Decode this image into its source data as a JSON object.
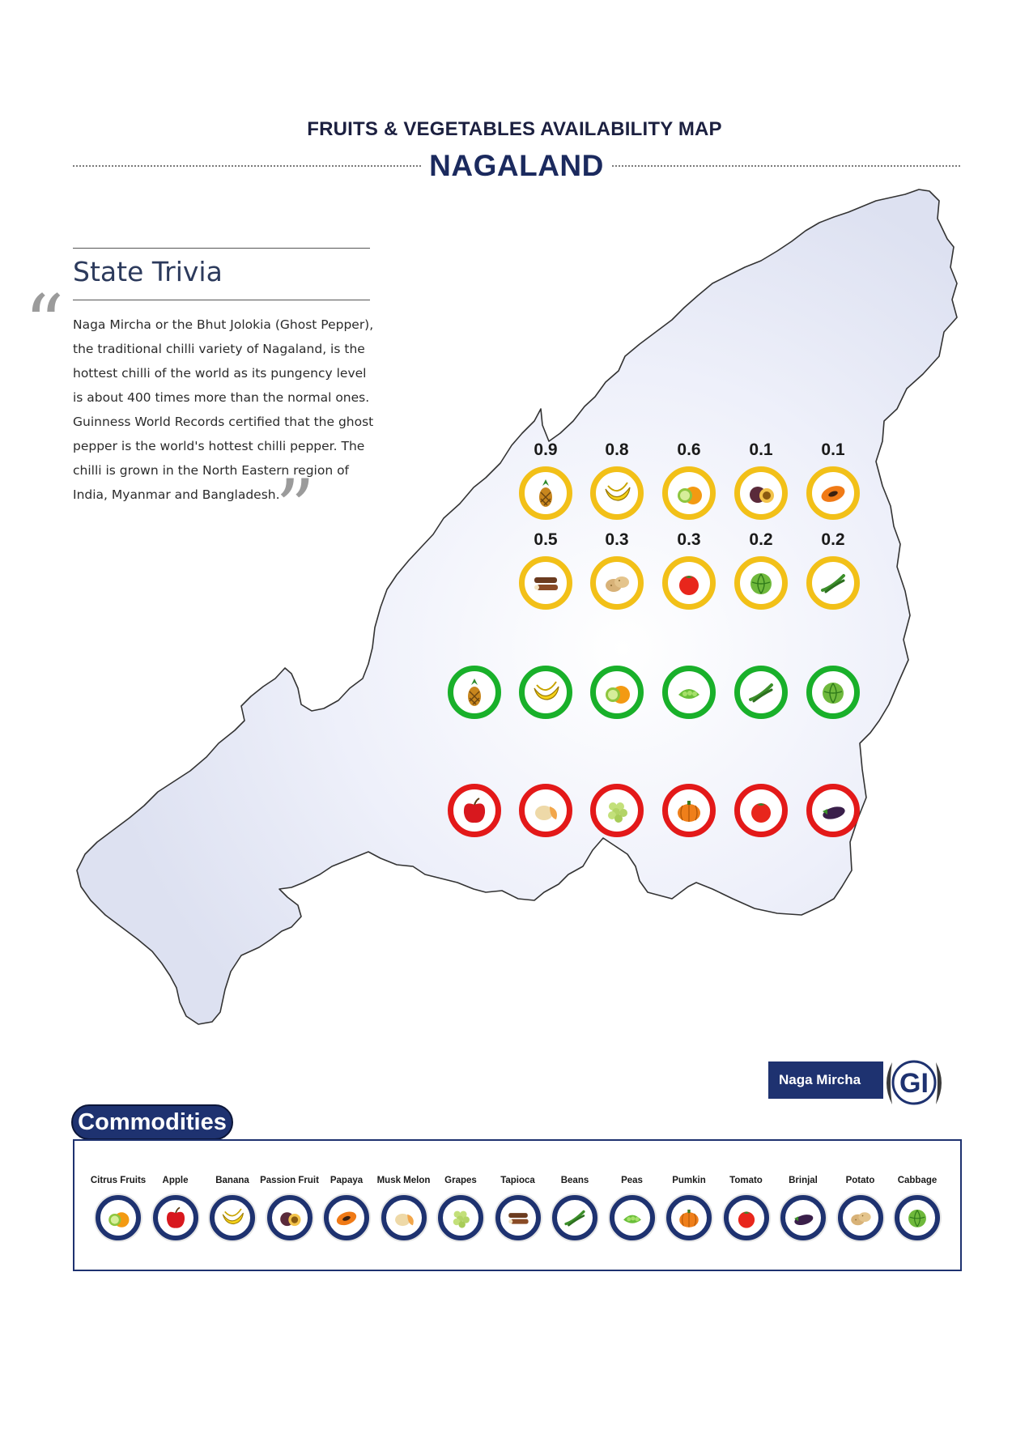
{
  "header": {
    "title": "FRUITS & VEGETABLES AVAILABILITY MAP",
    "state": "NAGALAND"
  },
  "trivia": {
    "heading": "State Trivia",
    "open_quote": "“",
    "close_quote": "”",
    "lines": [
      "Naga Mircha or the Bhut Jolokia (Ghost Pepper),",
      "the traditional chilli variety of Nagaland, is the",
      "hottest chilli of the world as its pungency level",
      "is about 400 times more than the normal ones.",
      "Guinness World Records certified that the ghost",
      "pepper is the world's hottest chilli pepper. The",
      "chilli is grown in the North Eastern region of",
      "India, Myanmar and Bangladesh."
    ]
  },
  "map": {
    "colors": {
      "yellow": "#f2c018",
      "green": "#19b02a",
      "red": "#e31919",
      "map_fill": "#e6e9f6",
      "map_stroke": "#333333"
    },
    "yellow_row1": [
      {
        "value": "0.9",
        "icon": "pineapple-icon"
      },
      {
        "value": "0.8",
        "icon": "banana-icon"
      },
      {
        "value": "0.6",
        "icon": "citrus-fruits-icon"
      },
      {
        "value": "0.1",
        "icon": "passion-fruit-icon"
      },
      {
        "value": "0.1",
        "icon": "papaya-icon"
      }
    ],
    "yellow_row2": [
      {
        "value": "0.5",
        "icon": "tapioca-icon"
      },
      {
        "value": "0.3",
        "icon": "potato-icon"
      },
      {
        "value": "0.3",
        "icon": "tomato-icon"
      },
      {
        "value": "0.2",
        "icon": "cabbage-icon"
      },
      {
        "value": "0.2",
        "icon": "beans-icon"
      }
    ],
    "green_row": [
      {
        "icon": "pineapple-icon"
      },
      {
        "icon": "banana-icon"
      },
      {
        "icon": "citrus-fruits-icon"
      },
      {
        "icon": "peas-icon"
      },
      {
        "icon": "beans-icon"
      },
      {
        "icon": "cabbage-icon"
      }
    ],
    "red_row": [
      {
        "icon": "apple-icon"
      },
      {
        "icon": "musk-melon-icon"
      },
      {
        "icon": "grapes-icon"
      },
      {
        "icon": "pumkin-icon"
      },
      {
        "icon": "tomato-icon"
      },
      {
        "icon": "brinjal-icon"
      }
    ]
  },
  "gi": {
    "label": "Naga Mircha",
    "logo_text": "GI"
  },
  "commodities": {
    "heading": "Commodities",
    "items": [
      {
        "label": "Citrus Fruits",
        "icon": "citrus-fruits-icon"
      },
      {
        "label": "Apple",
        "icon": "apple-icon"
      },
      {
        "label": "Banana",
        "icon": "banana-icon"
      },
      {
        "label": "Passion Fruit",
        "icon": "passion-fruit-icon"
      },
      {
        "label": "Papaya",
        "icon": "papaya-icon"
      },
      {
        "label": "Musk Melon",
        "icon": "musk-melon-icon"
      },
      {
        "label": "Grapes",
        "icon": "grapes-icon"
      },
      {
        "label": "Tapioca",
        "icon": "tapioca-icon"
      },
      {
        "label": "Beans",
        "icon": "beans-icon"
      },
      {
        "label": "Peas",
        "icon": "peas-icon"
      },
      {
        "label": "Pumkin",
        "icon": "pumkin-icon"
      },
      {
        "label": "Tomato",
        "icon": "tomato-icon"
      },
      {
        "label": "Brinjal",
        "icon": "brinjal-icon"
      },
      {
        "label": "Potato",
        "icon": "potato-icon"
      },
      {
        "label": "Cabbage",
        "icon": "cabbage-icon"
      }
    ]
  }
}
